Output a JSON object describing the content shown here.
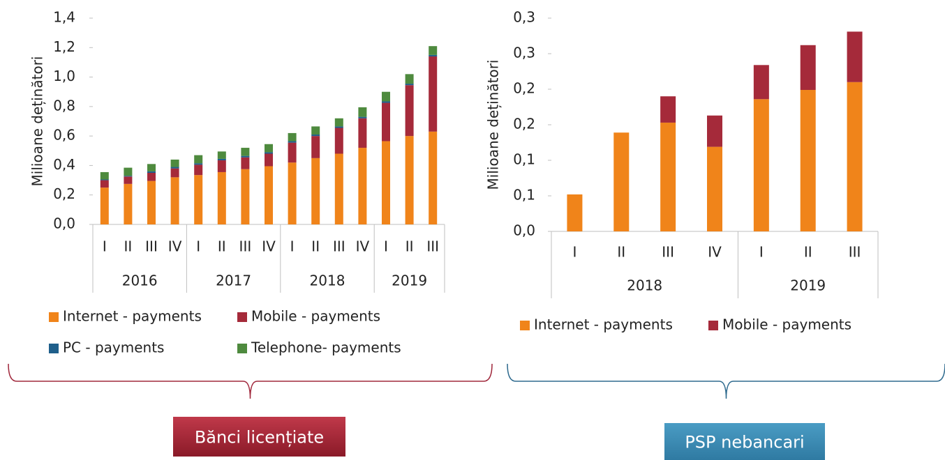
{
  "charts": [
    {
      "type": "bar",
      "stacked": true,
      "y_label": "Milioane deținători",
      "categories": [
        "I",
        "II",
        "III",
        "IV",
        "I",
        "II",
        "III",
        "IV",
        "I",
        "II",
        "III",
        "IV",
        "I",
        "II",
        "III"
      ],
      "category_groups": [
        "2016",
        "2016",
        "2016",
        "2016",
        "2017",
        "2017",
        "2017",
        "2017",
        "2018",
        "2018",
        "2018",
        "2018",
        "2019",
        "2019",
        "2019"
      ],
      "ylim": [
        0,
        1.4
      ],
      "yticks": [
        {
          "value": 0,
          "label": "0,0"
        },
        {
          "value": 0.2,
          "label": "0,2"
        },
        {
          "value": 0.4,
          "label": "0,4"
        },
        {
          "value": 0.6,
          "label": "0,6"
        },
        {
          "value": 0.8,
          "label": "0,8"
        },
        {
          "value": 1.0,
          "label": "1,0"
        },
        {
          "value": 1.2,
          "label": "1,2"
        },
        {
          "value": 1.4,
          "label": "1,4"
        }
      ],
      "series": [
        {
          "name": "Internet - payments",
          "color": "#f0841a",
          "values": [
            0.25,
            0.275,
            0.295,
            0.32,
            0.335,
            0.355,
            0.375,
            0.395,
            0.42,
            0.45,
            0.48,
            0.52,
            0.565,
            0.6,
            0.63
          ]
        },
        {
          "name": "Mobile - payments",
          "color": "#a52a3a",
          "values": [
            0.05,
            0.05,
            0.055,
            0.06,
            0.07,
            0.08,
            0.08,
            0.085,
            0.135,
            0.15,
            0.175,
            0.2,
            0.26,
            0.345,
            0.51
          ]
        },
        {
          "name": "PC - payments",
          "color": "#1f5f8b",
          "values": [
            0.005,
            0.005,
            0.01,
            0.01,
            0.01,
            0.01,
            0.01,
            0.01,
            0.01,
            0.01,
            0.01,
            0.01,
            0.01,
            0.01,
            0.01
          ]
        },
        {
          "name": "Telephone- payments",
          "color": "#4e8a3e",
          "values": [
            0.05,
            0.055,
            0.05,
            0.05,
            0.055,
            0.05,
            0.055,
            0.055,
            0.055,
            0.055,
            0.055,
            0.065,
            0.065,
            0.065,
            0.06
          ]
        }
      ],
      "section_label": "Bănci licențiate"
    },
    {
      "type": "bar",
      "stacked": true,
      "y_label": "Milioane deținători",
      "categories": [
        "I",
        "II",
        "III",
        "IV",
        "I",
        "II",
        "III"
      ],
      "category_groups": [
        "2018",
        "2018",
        "2018",
        "2018",
        "2019",
        "2019",
        "2019"
      ],
      "ylim": [
        0,
        0.3
      ],
      "yticks": [
        {
          "value": 0,
          "label": "0,0"
        },
        {
          "value": 0.05,
          "label": "0,1"
        },
        {
          "value": 0.1,
          "label": "0,1"
        },
        {
          "value": 0.15,
          "label": "0,2"
        },
        {
          "value": 0.2,
          "label": "0,2"
        },
        {
          "value": 0.25,
          "label": "0,3"
        },
        {
          "value": 0.3,
          "label": "0,3"
        }
      ],
      "series": [
        {
          "name": "Internet - payments",
          "color": "#f0841a",
          "values": [
            0.052,
            0.139,
            0.153,
            0.119,
            0.186,
            0.199,
            0.21
          ]
        },
        {
          "name": "Mobile - payments",
          "color": "#a52a3a",
          "values": [
            0,
            0,
            0.037,
            0.044,
            0.048,
            0.063,
            0.071
          ]
        }
      ],
      "section_label": "PSP nebancari"
    }
  ]
}
